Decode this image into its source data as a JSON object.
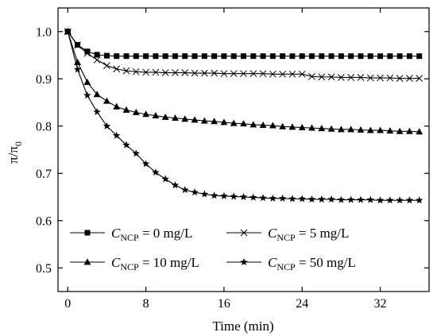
{
  "chart_data": {
    "type": "line",
    "xlabel": "Time (min)",
    "ylabel": "π/π",
    "ylabel_subscript": "0",
    "xlim": [
      -1,
      37
    ],
    "ylim": [
      0.45,
      1.05
    ],
    "xticks": [
      0,
      8,
      16,
      24,
      32
    ],
    "yticks": [
      0.5,
      0.6,
      0.7,
      0.8,
      0.9,
      1.0
    ],
    "ytick_labels": [
      "0.5",
      "0.6",
      "0.7",
      "0.8",
      "0.9",
      "1.0"
    ],
    "legend_placement": "bottom-left",
    "series": [
      {
        "name": "C_NCP = 0 mg/L",
        "legend_symbol": "C",
        "legend_subscript": "NCP",
        "legend_rest": " = 0 mg/L",
        "marker": "square",
        "x": [
          0,
          1,
          2,
          3,
          4,
          5,
          6,
          7,
          8,
          9,
          10,
          11,
          12,
          13,
          14,
          15,
          16,
          17,
          18,
          19,
          20,
          21,
          22,
          23,
          24,
          25,
          26,
          27,
          28,
          29,
          30,
          31,
          32,
          33,
          34,
          35,
          36
        ],
        "y": [
          1.0,
          0.972,
          0.958,
          0.951,
          0.949,
          0.948,
          0.948,
          0.948,
          0.948,
          0.948,
          0.948,
          0.948,
          0.948,
          0.948,
          0.948,
          0.948,
          0.948,
          0.948,
          0.948,
          0.948,
          0.948,
          0.948,
          0.948,
          0.948,
          0.948,
          0.948,
          0.948,
          0.948,
          0.948,
          0.948,
          0.948,
          0.948,
          0.948,
          0.948,
          0.948,
          0.948,
          0.948
        ]
      },
      {
        "name": "C_NCP = 5 mg/L",
        "legend_symbol": "C",
        "legend_subscript": "NCP",
        "legend_rest": " = 5 mg/L",
        "marker": "cross",
        "x": [
          0,
          1,
          2,
          3,
          4,
          5,
          6,
          7,
          8,
          9,
          10,
          11,
          12,
          13,
          14,
          15,
          16,
          17,
          18,
          19,
          20,
          21,
          22,
          23,
          24,
          25,
          26,
          27,
          28,
          29,
          30,
          31,
          32,
          33,
          34,
          35,
          36
        ],
        "y": [
          1.0,
          0.971,
          0.954,
          0.94,
          0.928,
          0.921,
          0.917,
          0.915,
          0.914,
          0.914,
          0.913,
          0.913,
          0.913,
          0.912,
          0.912,
          0.912,
          0.911,
          0.911,
          0.911,
          0.911,
          0.911,
          0.91,
          0.91,
          0.91,
          0.91,
          0.905,
          0.904,
          0.904,
          0.903,
          0.903,
          0.903,
          0.902,
          0.902,
          0.902,
          0.901,
          0.901,
          0.901
        ]
      },
      {
        "name": "C_NCP = 10 mg/L",
        "legend_symbol": "C",
        "legend_subscript": "NCP",
        "legend_rest": " = 10 mg/L",
        "marker": "triangle",
        "x": [
          0,
          1,
          2,
          3,
          4,
          5,
          6,
          7,
          8,
          9,
          10,
          11,
          12,
          13,
          14,
          15,
          16,
          17,
          18,
          19,
          20,
          21,
          22,
          23,
          24,
          25,
          26,
          27,
          28,
          29,
          30,
          31,
          32,
          33,
          34,
          35,
          36
        ],
        "y": [
          1.0,
          0.935,
          0.893,
          0.867,
          0.853,
          0.841,
          0.834,
          0.829,
          0.825,
          0.822,
          0.819,
          0.817,
          0.815,
          0.813,
          0.811,
          0.81,
          0.808,
          0.806,
          0.805,
          0.803,
          0.802,
          0.801,
          0.799,
          0.798,
          0.797,
          0.796,
          0.795,
          0.794,
          0.793,
          0.793,
          0.792,
          0.791,
          0.791,
          0.79,
          0.789,
          0.789,
          0.788
        ]
      },
      {
        "name": "C_NCP = 50 mg/L",
        "legend_symbol": "C",
        "legend_subscript": "NCP",
        "legend_rest": " = 50 mg/L",
        "marker": "star",
        "x": [
          0,
          1,
          2,
          3,
          4,
          5,
          6,
          7,
          8,
          9,
          10,
          11,
          12,
          13,
          14,
          15,
          16,
          17,
          18,
          19,
          20,
          21,
          22,
          23,
          24,
          25,
          26,
          27,
          28,
          29,
          30,
          31,
          32,
          33,
          34,
          35,
          36
        ],
        "y": [
          1.0,
          0.92,
          0.865,
          0.83,
          0.8,
          0.78,
          0.76,
          0.742,
          0.72,
          0.702,
          0.688,
          0.675,
          0.665,
          0.66,
          0.656,
          0.653,
          0.652,
          0.651,
          0.65,
          0.649,
          0.648,
          0.647,
          0.647,
          0.646,
          0.646,
          0.645,
          0.645,
          0.645,
          0.644,
          0.644,
          0.644,
          0.644,
          0.643,
          0.643,
          0.643,
          0.643,
          0.643
        ]
      }
    ]
  }
}
